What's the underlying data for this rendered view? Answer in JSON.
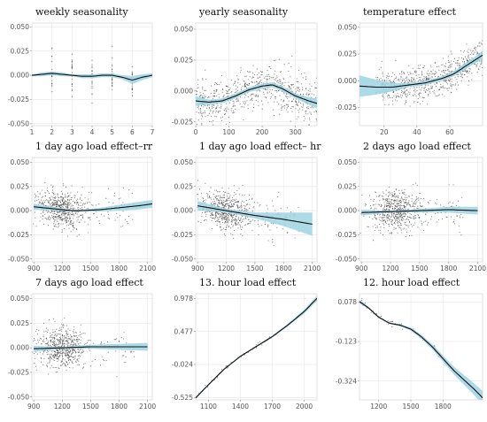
{
  "chart_data": [
    {
      "type": "line",
      "title": "weekly seasonality",
      "xlim": [
        1,
        7
      ],
      "ylim": [
        -0.052,
        0.054
      ],
      "xticks": [
        1,
        2,
        3,
        4,
        5,
        6,
        7
      ],
      "yticks": [
        0.05,
        0.025,
        0.0,
        -0.025,
        -0.05
      ],
      "ytick_labels": [
        "0.050",
        "0.025",
        "0.000",
        "-0.025",
        "-0.050"
      ],
      "grid": true,
      "fit": {
        "x": [
          1,
          1.5,
          2,
          2.5,
          3,
          3.5,
          4,
          4.5,
          5,
          5.5,
          6,
          6.5,
          7
        ],
        "y": [
          0.0,
          0.001,
          0.002,
          0.001,
          0.0,
          -0.001,
          -0.001,
          0.0,
          0.0,
          -0.002,
          -0.005,
          -0.002,
          0.0
        ]
      },
      "band_halfwidth": [
        0.001,
        0.002,
        0.002,
        0.002,
        0.001,
        0.002,
        0.002,
        0.002,
        0.002,
        0.002,
        0.004,
        0.003,
        0.002
      ],
      "points": {
        "mode": "columns",
        "x_values": [
          2,
          3,
          4,
          5,
          6
        ],
        "n": 110,
        "spread": 0.011,
        "seed": 11
      }
    },
    {
      "type": "line",
      "title": "yearly seasonality",
      "xlim": [
        0,
        365
      ],
      "ylim": [
        -0.028,
        0.055
      ],
      "xticks": [
        0,
        100,
        200,
        300
      ],
      "yticks": [
        0.05,
        0.025,
        0.0,
        -0.025
      ],
      "ytick_labels": [
        "0.050",
        "0.025",
        "0.000",
        "-0.025"
      ],
      "grid": true,
      "fit": {
        "x": [
          0,
          40,
          80,
          120,
          160,
          200,
          230,
          260,
          300,
          340,
          365
        ],
        "y": [
          -0.008,
          -0.009,
          -0.008,
          -0.004,
          0.001,
          0.004,
          0.005,
          0.002,
          -0.004,
          -0.008,
          -0.01
        ]
      },
      "band_halfwidth": [
        0.004,
        0.002,
        0.002,
        0.002,
        0.002,
        0.002,
        0.002,
        0.002,
        0.002,
        0.003,
        0.004
      ],
      "points": {
        "mode": "scatter",
        "n": 700,
        "spread": 0.009,
        "seed": 23
      }
    },
    {
      "type": "line",
      "title": "temperature effect",
      "xlim": [
        5,
        80
      ],
      "ylim": [
        -0.042,
        0.054
      ],
      "xticks": [
        20,
        40,
        60
      ],
      "yticks": [
        0.05,
        0.025,
        0.0,
        -0.025
      ],
      "ytick_labels": [
        "0.050",
        "0.025",
        "0.000",
        "-0.025"
      ],
      "grid": true,
      "fit": {
        "x": [
          5,
          15,
          25,
          35,
          45,
          55,
          62,
          68,
          74,
          80
        ],
        "y": [
          -0.005,
          -0.006,
          -0.006,
          -0.004,
          -0.002,
          0.002,
          0.006,
          0.012,
          0.018,
          0.024
        ]
      },
      "band_halfwidth": [
        0.01,
        0.007,
        0.004,
        0.002,
        0.002,
        0.002,
        0.002,
        0.003,
        0.003,
        0.004
      ],
      "points": {
        "mode": "scatter",
        "n": 700,
        "spread": 0.008,
        "seed": 37,
        "x_min": 15
      }
    },
    {
      "type": "line",
      "title": "1 day ago load effect–rr",
      "xlim": [
        880,
        2150
      ],
      "ylim": [
        -0.053,
        0.055
      ],
      "xticks": [
        900,
        1200,
        1500,
        1800,
        2100
      ],
      "yticks": [
        0.05,
        0.025,
        0.0,
        -0.025,
        -0.05
      ],
      "ytick_labels": [
        "0.050",
        "0.025",
        "0.000",
        "-0.025",
        "-0.050"
      ],
      "grid": true,
      "fit": {
        "x": [
          900,
          1100,
          1300,
          1400,
          1600,
          1800,
          2000,
          2150
        ],
        "y": [
          0.004,
          0.002,
          0.0,
          0.0,
          0.001,
          0.003,
          0.005,
          0.007
        ]
      },
      "band_halfwidth": [
        0.003,
        0.002,
        0.001,
        0.001,
        0.002,
        0.003,
        0.004,
        0.004
      ],
      "points": {
        "mode": "cluster",
        "center": 1200,
        "sd": 120,
        "n": 650,
        "spread": 0.01,
        "seed": 41
      }
    },
    {
      "type": "line",
      "title": "1 day ago load effect– hr",
      "xlim": [
        880,
        2150
      ],
      "ylim": [
        -0.053,
        0.055
      ],
      "xticks": [
        900,
        1200,
        1500,
        1800,
        2100
      ],
      "yticks": [
        0.05,
        0.025,
        0.0,
        -0.025,
        -0.05
      ],
      "ytick_labels": [
        "0.050",
        "0.025",
        "0.000",
        "-0.025",
        "-0.050"
      ],
      "grid": true,
      "fit": {
        "x": [
          900,
          1200,
          1500,
          1800,
          2100
        ],
        "y": [
          0.005,
          0.0,
          -0.005,
          -0.009,
          -0.014
        ]
      },
      "band_halfwidth": [
        0.005,
        0.002,
        0.003,
        0.007,
        0.012
      ],
      "points": {
        "mode": "cluster",
        "center": 1200,
        "sd": 120,
        "n": 650,
        "spread": 0.01,
        "seed": 53,
        "trend": -1.2e-05
      }
    },
    {
      "type": "line",
      "title": "2 days ago load effect",
      "xlim": [
        880,
        2150
      ],
      "ylim": [
        -0.053,
        0.055
      ],
      "xticks": [
        900,
        1200,
        1500,
        1800,
        2100
      ],
      "yticks": [
        0.05,
        0.025,
        0.0,
        -0.025,
        -0.05
      ],
      "ytick_labels": [
        "0.050",
        "0.025",
        "0.000",
        "-0.025",
        "-0.050"
      ],
      "grid": true,
      "fit": {
        "x": [
          900,
          1200,
          1500,
          1800,
          2100
        ],
        "y": [
          -0.002,
          -0.001,
          0.0,
          0.001,
          0.0
        ]
      },
      "band_halfwidth": [
        0.003,
        0.001,
        0.002,
        0.003,
        0.004
      ],
      "points": {
        "mode": "cluster",
        "center": 1250,
        "sd": 120,
        "n": 650,
        "spread": 0.01,
        "seed": 67
      }
    },
    {
      "type": "line",
      "title": "7 days ago load effect",
      "xlim": [
        880,
        2150
      ],
      "ylim": [
        -0.053,
        0.055
      ],
      "xticks": [
        900,
        1200,
        1500,
        1800,
        2100
      ],
      "yticks": [
        0.05,
        0.025,
        0.0,
        -0.025,
        -0.05
      ],
      "ytick_labels": [
        "0.050",
        "0.025",
        "0.000",
        "-0.025",
        "-0.050"
      ],
      "grid": true,
      "fit": {
        "x": [
          900,
          1200,
          1500,
          1800,
          2100
        ],
        "y": [
          -0.001,
          0.0,
          0.001,
          0.001,
          0.001
        ]
      },
      "band_halfwidth": [
        0.003,
        0.001,
        0.002,
        0.003,
        0.004
      ],
      "points": {
        "mode": "cluster",
        "center": 1200,
        "sd": 110,
        "n": 650,
        "spread": 0.01,
        "seed": 79
      }
    },
    {
      "type": "line",
      "title": "13. hour load effect",
      "xlim": [
        980,
        2120
      ],
      "ylim": [
        -0.56,
        1.05
      ],
      "xticks": [
        1100,
        1400,
        1700,
        2000
      ],
      "yticks": [
        0.978,
        0.477,
        -0.024,
        -0.525
      ],
      "ytick_labels": [
        "0.978",
        "0.477",
        "-0.024",
        "-0.525"
      ],
      "grid": true,
      "fit": {
        "x": [
          980,
          1100,
          1250,
          1400,
          1550,
          1700,
          1850,
          2000,
          2120
        ],
        "y": [
          -0.53,
          -0.33,
          -0.09,
          0.1,
          0.25,
          0.4,
          0.58,
          0.78,
          0.98
        ]
      },
      "band_halfwidth": [
        0.02,
        0.01,
        0.01,
        0.01,
        0.01,
        0.015,
        0.02,
        0.03,
        0.04
      ],
      "points": {
        "mode": "onfit",
        "n": 60,
        "spread": 0.015,
        "seed": 83,
        "x_min": 1000,
        "x_max": 1780
      }
    },
    {
      "type": "line",
      "title": "12. hour load effect",
      "xlim": [
        1020,
        2170
      ],
      "ylim": [
        -0.42,
        0.12
      ],
      "xticks": [
        1200,
        1500,
        1800
      ],
      "yticks": [
        0.078,
        -0.123,
        -0.324
      ],
      "ytick_labels": [
        "0.078",
        "-0.123",
        "-0.324"
      ],
      "grid": true,
      "fit": {
        "x": [
          1020,
          1100,
          1200,
          1300,
          1400,
          1500,
          1600,
          1700,
          1800,
          1900,
          2000,
          2100,
          2170
        ],
        "y": [
          0.08,
          0.05,
          0.0,
          -0.03,
          -0.04,
          -0.06,
          -0.1,
          -0.15,
          -0.21,
          -0.27,
          -0.32,
          -0.37,
          -0.41
        ]
      },
      "band_halfwidth": [
        0.01,
        0.005,
        0.004,
        0.004,
        0.005,
        0.008,
        0.01,
        0.013,
        0.016,
        0.02,
        0.025,
        0.03,
        0.035
      ],
      "points": {
        "mode": "onfit",
        "n": 80,
        "spread": 0.008,
        "seed": 97,
        "x_min": 1030,
        "x_max": 1780
      }
    }
  ],
  "colors": {
    "band": "#9fd3e3",
    "line": "#111111",
    "points": "#444444",
    "grid": "#e6e6e6",
    "axis": "#888888"
  }
}
